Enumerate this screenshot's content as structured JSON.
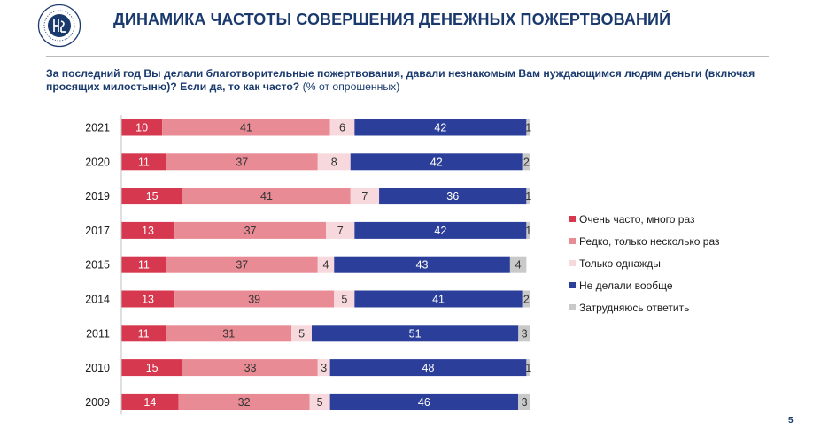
{
  "header": {
    "title": "ДИНАМИКА  ЧАСТОТЫ СОВЕРШЕНИЯ ДЕНЕЖНЫХ ПОЖЕРТВОВАНИЙ",
    "question": "За последний год Вы делали благотворительные пожертвования, давали незнакомым Вам нуждающимся людям деньги (включая просящих милостыню)? Если да, то как часто?",
    "unit_note": "(% от опрошенных)"
  },
  "colors": {
    "brand": "#1a3a6e",
    "very_often": "#d6394f",
    "rarely": "#e88b95",
    "once": "#f7d8dc",
    "never": "#2b3f9a",
    "unsure": "#c9c9c9"
  },
  "chart_data": {
    "type": "bar",
    "orientation": "horizontal",
    "stacked": true,
    "categories": [
      "2021",
      "2020",
      "2019",
      "2017",
      "2015",
      "2014",
      "2011",
      "2010",
      "2009"
    ],
    "series": [
      {
        "name": "Очень часто, много раз",
        "values": [
          10,
          11,
          15,
          13,
          11,
          13,
          11,
          15,
          14
        ]
      },
      {
        "name": "Редко, только несколько раз",
        "values": [
          41,
          37,
          41,
          37,
          37,
          39,
          31,
          33,
          32
        ]
      },
      {
        "name": "Только однажды",
        "values": [
          6,
          8,
          7,
          7,
          4,
          5,
          5,
          3,
          5
        ]
      },
      {
        "name": "Не делали вообще",
        "values": [
          42,
          42,
          36,
          42,
          43,
          41,
          51,
          48,
          46
        ]
      },
      {
        "name": "Затрудняюсь ответить",
        "values": [
          1,
          2,
          1,
          1,
          4,
          2,
          3,
          1,
          3
        ]
      }
    ],
    "xlim": [
      0,
      100
    ],
    "legend_position": "right"
  },
  "footer": {
    "page_number": "5"
  }
}
